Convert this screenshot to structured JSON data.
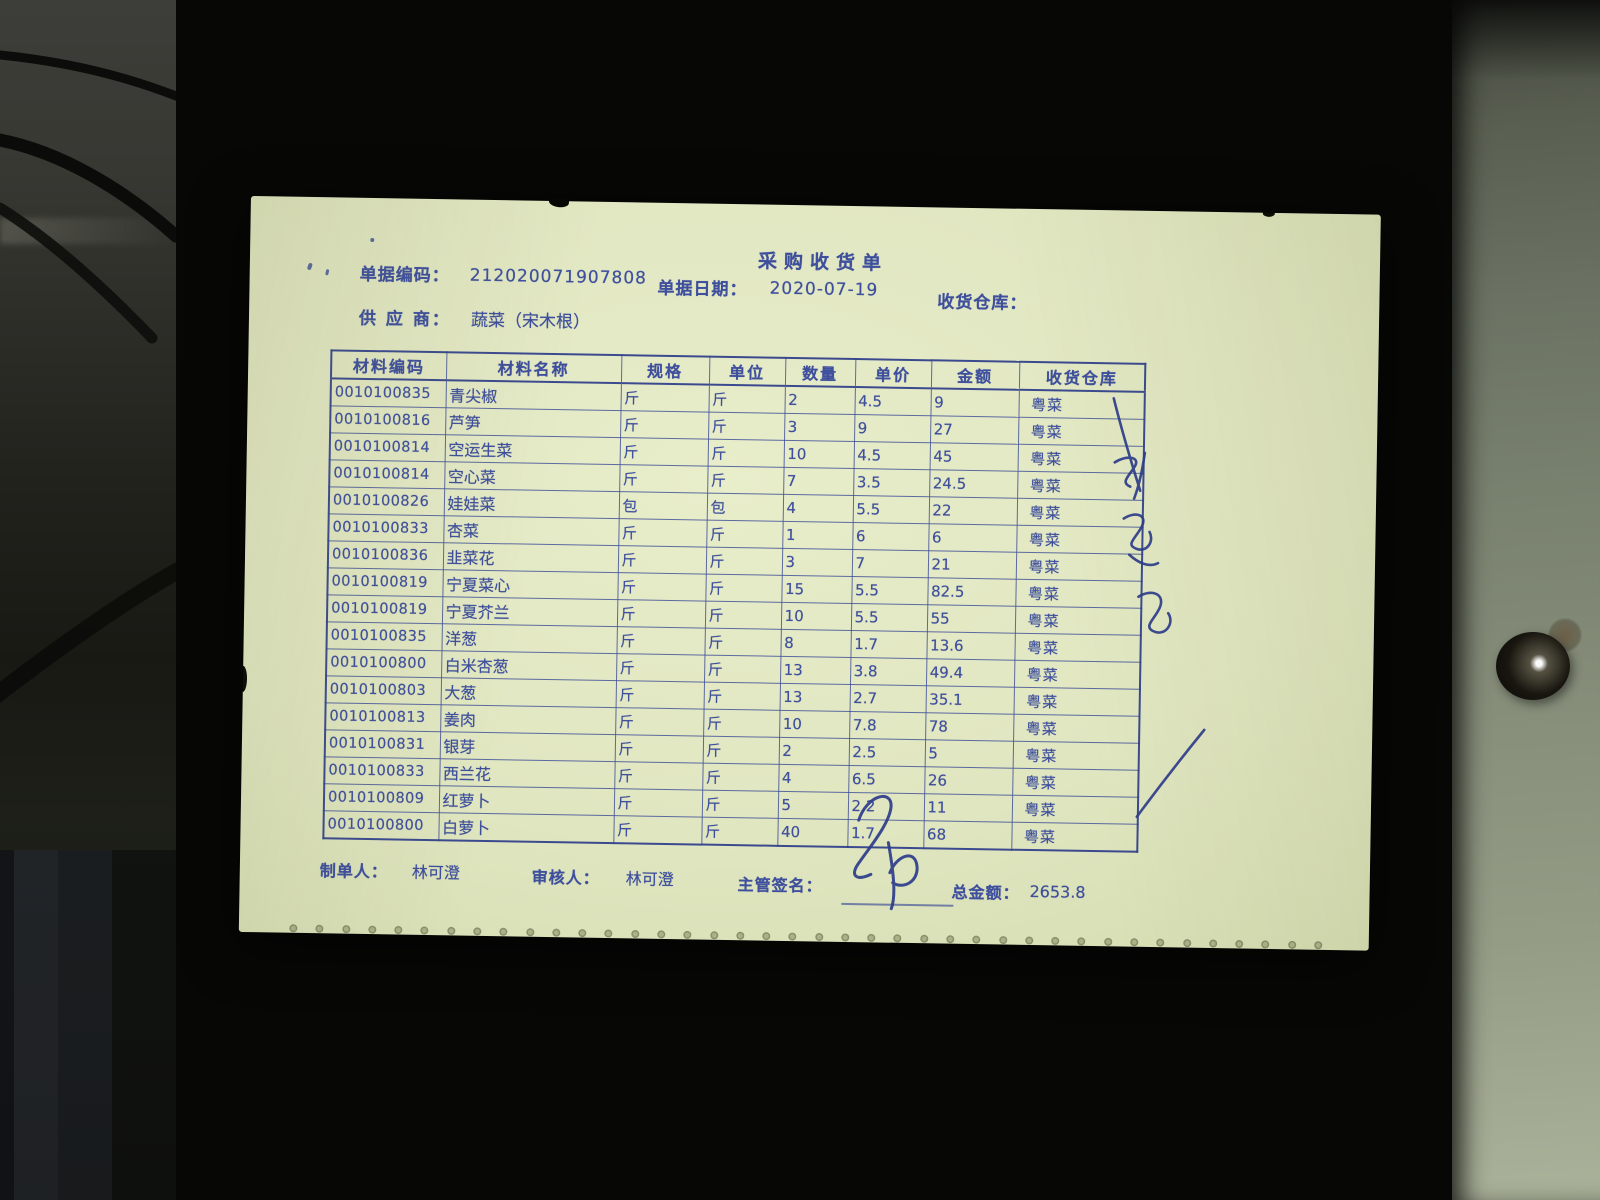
{
  "document": {
    "title": "采购收货单",
    "fields": {
      "code_label": "单据编码：",
      "code_value": "212020071907808",
      "date_label": "单据日期：",
      "date_value": "2020-07-19",
      "warehouse_label": "收货仓库：",
      "supplier_label": "供 应 商：",
      "supplier_value": "蔬菜（宋木根）"
    },
    "table": {
      "headers": [
        "材料编码",
        "材料名称",
        "规格",
        "单位",
        "数量",
        "单价",
        "金额",
        "收货仓库"
      ],
      "rows": [
        [
          "0010100835",
          "青尖椒",
          "斤",
          "斤",
          "2",
          "4.5",
          "9",
          "粤菜"
        ],
        [
          "0010100816",
          "芦笋",
          "斤",
          "斤",
          "3",
          "9",
          "27",
          "粤菜"
        ],
        [
          "0010100814",
          "空运生菜",
          "斤",
          "斤",
          "10",
          "4.5",
          "45",
          "粤菜"
        ],
        [
          "0010100814",
          "空心菜",
          "斤",
          "斤",
          "7",
          "3.5",
          "24.5",
          "粤菜"
        ],
        [
          "0010100826",
          "娃娃菜",
          "包",
          "包",
          "4",
          "5.5",
          "22",
          "粤菜"
        ],
        [
          "0010100833",
          "杏菜",
          "斤",
          "斤",
          "1",
          "6",
          "6",
          "粤菜"
        ],
        [
          "0010100836",
          "韭菜花",
          "斤",
          "斤",
          "3",
          "7",
          "21",
          "粤菜"
        ],
        [
          "0010100819",
          "宁夏菜心",
          "斤",
          "斤",
          "15",
          "5.5",
          "82.5",
          "粤菜"
        ],
        [
          "0010100819",
          "宁夏芥兰",
          "斤",
          "斤",
          "10",
          "5.5",
          "55",
          "粤菜"
        ],
        [
          "0010100835",
          "洋葱",
          "斤",
          "斤",
          "8",
          "1.7",
          "13.6",
          "粤菜"
        ],
        [
          "0010100800",
          "白米杏葱",
          "斤",
          "斤",
          "13",
          "3.8",
          "49.4",
          "粤菜"
        ],
        [
          "0010100803",
          "大葱",
          "斤",
          "斤",
          "13",
          "2.7",
          "35.1",
          "粤菜"
        ],
        [
          "0010100813",
          "姜肉",
          "斤",
          "斤",
          "10",
          "7.8",
          "78",
          "粤菜"
        ],
        [
          "0010100831",
          "银芽",
          "斤",
          "斤",
          "2",
          "2.5",
          "5",
          "粤菜"
        ],
        [
          "0010100833",
          "西兰花",
          "斤",
          "斤",
          "4",
          "6.5",
          "26",
          "粤菜"
        ],
        [
          "0010100809",
          "红萝卜",
          "斤",
          "斤",
          "5",
          "2.2",
          "11",
          "粤菜"
        ],
        [
          "0010100800",
          "白萝卜",
          "斤",
          "斤",
          "40",
          "1.7",
          "68",
          "粤菜"
        ]
      ]
    },
    "footer": {
      "maker_label": "制单人：",
      "maker_value": "林可澄",
      "auditor_label": "审核人：",
      "auditor_value": "林可澄",
      "sign_label": "主管签名：",
      "total_label": "总金额：",
      "total_value": "2653.8"
    },
    "handwriting": {
      "supervisor_signature": "cursive-signature",
      "warehouse_column_name": "vertical-cursive-name",
      "check_marks": "slash-marks"
    }
  },
  "colors": {
    "paper": "#e0e6c0",
    "ink": "#3e4f9d",
    "background": "#070706",
    "right_wall": "#79816f"
  },
  "perforation_dot_count": 40
}
